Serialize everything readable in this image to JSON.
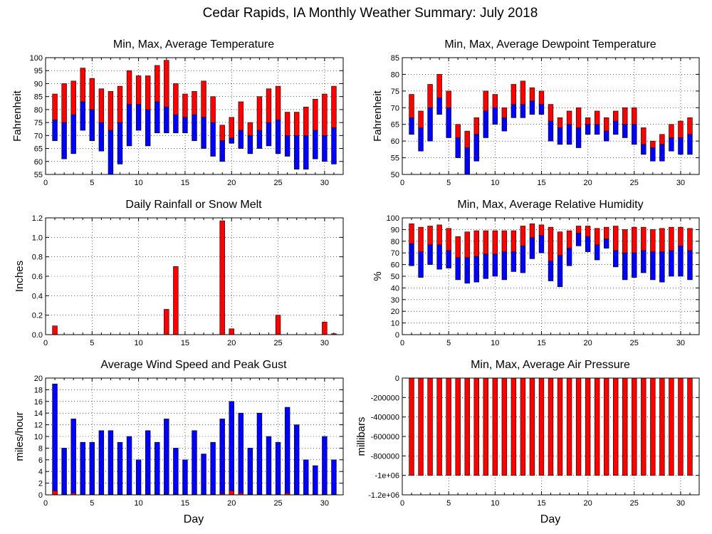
{
  "title": "Cedar Rapids, IA Monthly Weather Summary: July 2018",
  "colors": {
    "upper": "#ff0000",
    "lower": "#0000ff",
    "outline": "#000000"
  },
  "chart_data": [
    {
      "id": "temperature",
      "type": "bar",
      "title": "Min, Max, Average Temperature",
      "ylabel": "Fahrenheit",
      "xlabel": "",
      "xlim": [
        0,
        32
      ],
      "ylim": [
        55,
        100
      ],
      "yticks": [
        55,
        60,
        65,
        70,
        75,
        80,
        85,
        90,
        95,
        100
      ],
      "xticks": [
        0,
        5,
        10,
        15,
        20,
        25,
        30
      ],
      "grid": true,
      "days": [
        1,
        2,
        3,
        4,
        5,
        6,
        7,
        8,
        9,
        10,
        11,
        12,
        13,
        14,
        15,
        16,
        17,
        18,
        19,
        20,
        21,
        22,
        23,
        24,
        25,
        26,
        27,
        28,
        29,
        30,
        31
      ],
      "series": [
        {
          "name": "Min",
          "values": [
            68,
            61,
            63,
            72,
            68,
            64,
            55,
            59,
            66,
            72,
            66,
            71,
            71,
            71,
            71,
            68,
            65,
            62,
            60,
            67,
            65,
            63,
            65,
            66,
            63,
            62,
            57,
            57,
            61,
            60,
            59
          ]
        },
        {
          "name": "Average",
          "values": [
            76,
            75,
            78,
            83,
            80,
            75,
            72,
            75,
            82,
            82,
            80,
            83,
            81,
            78,
            77,
            78,
            77,
            75,
            68,
            69,
            72,
            70,
            72,
            75,
            76,
            70,
            70,
            70,
            72,
            70,
            73
          ]
        },
        {
          "name": "Max",
          "values": [
            86,
            90,
            91,
            96,
            92,
            88,
            87,
            89,
            95,
            93,
            93,
            97,
            99,
            90,
            86,
            87,
            91,
            85,
            74,
            77,
            83,
            75,
            85,
            88,
            89,
            79,
            79,
            81,
            84,
            86,
            89
          ]
        }
      ]
    },
    {
      "id": "dewpoint",
      "type": "bar",
      "title": "Min, Max, Average Dewpoint Temperature",
      "ylabel": "Fahrenheit",
      "xlabel": "",
      "xlim": [
        0,
        32
      ],
      "ylim": [
        50,
        85
      ],
      "yticks": [
        50,
        55,
        60,
        65,
        70,
        75,
        80,
        85
      ],
      "xticks": [
        0,
        5,
        10,
        15,
        20,
        25,
        30
      ],
      "grid": true,
      "days": [
        1,
        2,
        3,
        4,
        5,
        6,
        7,
        8,
        9,
        10,
        11,
        12,
        13,
        14,
        15,
        16,
        17,
        18,
        19,
        20,
        21,
        22,
        23,
        24,
        25,
        26,
        27,
        28,
        29,
        30,
        31
      ],
      "series": [
        {
          "name": "Min",
          "values": [
            62,
            57,
            60,
            68,
            61,
            55,
            50,
            54,
            61,
            65,
            63,
            67,
            67,
            68,
            68,
            60,
            59,
            59,
            58,
            62,
            62,
            60,
            62,
            61,
            59,
            56,
            54,
            54,
            57,
            56,
            56
          ]
        },
        {
          "name": "Average",
          "values": [
            67,
            64,
            70,
            73,
            70,
            61,
            58,
            62,
            69,
            70,
            67,
            71,
            71,
            72,
            71,
            66,
            64,
            65,
            64,
            65,
            65,
            63,
            66,
            65,
            65,
            59,
            58,
            59,
            61,
            61,
            62
          ]
        },
        {
          "name": "Max",
          "values": [
            74,
            69,
            77,
            80,
            75,
            65,
            63,
            67,
            75,
            74,
            70,
            77,
            78,
            76,
            75,
            71,
            67,
            69,
            70,
            67,
            69,
            67,
            69,
            70,
            70,
            64,
            60,
            62,
            65,
            66,
            67
          ]
        }
      ]
    },
    {
      "id": "rainfall",
      "type": "bar",
      "title": "Daily Rainfall or Snow Melt",
      "ylabel": "Inches",
      "xlabel": "",
      "xlim": [
        0,
        32
      ],
      "ylim": [
        0,
        1.2
      ],
      "yticks": [
        0.0,
        0.2,
        0.4,
        0.6,
        0.8,
        1.0,
        1.2
      ],
      "ytick_labels": [
        "0.0",
        "0.2",
        "0.4",
        "0.6",
        "0.8",
        "1.0",
        "1.2"
      ],
      "xticks": [
        0,
        5,
        10,
        15,
        20,
        25,
        30
      ],
      "grid": true,
      "days": [
        1,
        2,
        3,
        4,
        5,
        6,
        7,
        8,
        9,
        10,
        11,
        12,
        13,
        14,
        15,
        16,
        17,
        18,
        19,
        20,
        21,
        22,
        23,
        24,
        25,
        26,
        27,
        28,
        29,
        30,
        31
      ],
      "series": [
        {
          "name": "Rain",
          "values": [
            0.09,
            0,
            0,
            0,
            0,
            0,
            0,
            0,
            0,
            0,
            0,
            0,
            0.26,
            0.7,
            0,
            0,
            0,
            0,
            1.17,
            0.06,
            0,
            0,
            0,
            0,
            0.2,
            0,
            0,
            0,
            0,
            0.13,
            0.01
          ]
        }
      ]
    },
    {
      "id": "humidity",
      "type": "bar",
      "title": "Min, Max, Average Relative Humidity",
      "ylabel": "%",
      "xlabel": "",
      "xlim": [
        0,
        32
      ],
      "ylim": [
        0,
        100
      ],
      "yticks": [
        0,
        10,
        20,
        30,
        40,
        50,
        60,
        70,
        80,
        90,
        100
      ],
      "xticks": [
        0,
        5,
        10,
        15,
        20,
        25,
        30
      ],
      "grid": true,
      "days": [
        1,
        2,
        3,
        4,
        5,
        6,
        7,
        8,
        9,
        10,
        11,
        12,
        13,
        14,
        15,
        16,
        17,
        18,
        19,
        20,
        21,
        22,
        23,
        24,
        25,
        26,
        27,
        28,
        29,
        30,
        31
      ],
      "series": [
        {
          "name": "Min",
          "values": [
            59,
            49,
            60,
            56,
            57,
            47,
            44,
            45,
            48,
            50,
            47,
            54,
            53,
            65,
            70,
            46,
            41,
            59,
            76,
            71,
            64,
            74,
            58,
            47,
            49,
            53,
            47,
            45,
            50,
            50,
            47
          ]
        },
        {
          "name": "Average",
          "values": [
            78,
            71,
            77,
            77,
            72,
            66,
            66,
            67,
            69,
            69,
            71,
            71,
            76,
            83,
            85,
            63,
            68,
            74,
            87,
            84,
            77,
            82,
            72,
            70,
            70,
            72,
            71,
            71,
            72,
            76,
            72
          ]
        },
        {
          "name": "Max",
          "values": [
            95,
            92,
            93,
            94,
            91,
            84,
            88,
            89,
            89,
            89,
            89,
            89,
            93,
            95,
            94,
            92,
            88,
            89,
            93,
            93,
            91,
            92,
            93,
            90,
            92,
            92,
            90,
            91,
            92,
            92,
            91
          ]
        }
      ]
    },
    {
      "id": "wind",
      "type": "bar",
      "title": "Average Wind Speed and Peak Gust",
      "ylabel": "miles/hour",
      "xlabel": "Day",
      "xlim": [
        0,
        32
      ],
      "ylim": [
        0,
        20
      ],
      "yticks": [
        0,
        2,
        4,
        6,
        8,
        10,
        12,
        14,
        16,
        18,
        20
      ],
      "xticks": [
        0,
        5,
        10,
        15,
        20,
        25,
        30
      ],
      "grid": true,
      "days": [
        1,
        2,
        3,
        4,
        5,
        6,
        7,
        8,
        9,
        10,
        11,
        12,
        13,
        14,
        15,
        16,
        17,
        18,
        19,
        20,
        21,
        22,
        23,
        24,
        25,
        26,
        27,
        28,
        29,
        30,
        31
      ],
      "series": [
        {
          "name": "Average Wind Speed",
          "values": [
            0.7,
            0.1,
            0.3,
            0.1,
            0.1,
            0.1,
            0.1,
            0.1,
            0.1,
            0.1,
            0.1,
            0.1,
            0.1,
            0.1,
            0.1,
            0.1,
            0.1,
            0.1,
            0.2,
            0.7,
            0.3,
            0.1,
            0.1,
            0.1,
            0.1,
            0.3,
            0.1,
            0.1,
            0.1,
            0.1,
            0.1
          ]
        },
        {
          "name": "Peak Gust",
          "values": [
            19,
            8,
            13,
            9,
            9,
            11,
            11,
            9,
            10,
            6,
            11,
            9,
            13,
            8,
            6,
            11,
            7,
            9,
            13,
            16,
            14,
            8,
            14,
            10,
            9,
            15,
            12,
            6,
            5,
            10,
            6
          ]
        }
      ]
    },
    {
      "id": "pressure",
      "type": "bar",
      "title": "Min, Max, Average Air Pressure",
      "ylabel": "millibars",
      "xlabel": "Day",
      "xlim": [
        0,
        32
      ],
      "ylim": [
        -1200000,
        0
      ],
      "yticks": [
        -1200000,
        -1000000,
        -800000,
        -600000,
        -400000,
        -200000,
        0
      ],
      "ytick_labels": [
        "-1.2e+06",
        "-1e+06",
        "-800000",
        "-600000",
        "-400000",
        "-200000",
        "0"
      ],
      "xticks": [
        0,
        5,
        10,
        15,
        20,
        25,
        30
      ],
      "grid": true,
      "days": [
        1,
        2,
        3,
        4,
        5,
        6,
        7,
        8,
        9,
        10,
        11,
        12,
        13,
        14,
        15,
        16,
        17,
        18,
        19,
        20,
        21,
        22,
        23,
        24,
        25,
        26,
        27,
        28,
        29,
        30,
        31
      ],
      "series": [
        {
          "name": "Min",
          "values": [
            -1000000,
            -1000000,
            -1000000,
            -1000000,
            -1000000,
            -1000000,
            -1000000,
            -1000000,
            -1000000,
            -1000000,
            -1000000,
            -1000000,
            -1000000,
            -1000000,
            -1000000,
            -1000000,
            -1000000,
            -1000000,
            -1000000,
            -1000000,
            -1000000,
            -1000000,
            -1000000,
            -1000000,
            -1000000,
            -1000000,
            -1000000,
            -1000000,
            -1000000,
            -1000000,
            -1000000
          ]
        },
        {
          "name": "Max",
          "values": [
            0,
            0,
            0,
            0,
            0,
            0,
            0,
            0,
            0,
            0,
            0,
            0,
            0,
            0,
            0,
            0,
            0,
            0,
            0,
            0,
            0,
            0,
            0,
            0,
            0,
            0,
            0,
            0,
            0,
            0,
            0
          ]
        }
      ]
    }
  ]
}
